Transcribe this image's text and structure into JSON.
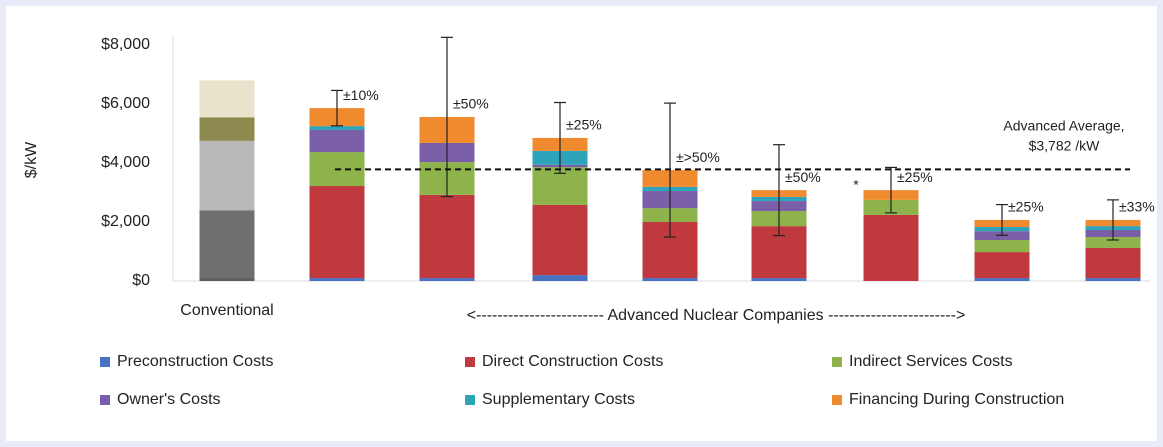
{
  "chart_data": {
    "type": "stacked_bar",
    "ylabel": "$/kW",
    "categories": [
      "Conventional",
      null,
      null,
      null,
      null,
      null,
      null,
      null,
      null
    ],
    "group_label": "<------------------------ Advanced Nuclear Companies ------------------------>",
    "series": [
      {
        "name": "Preconstruction Costs",
        "color": "#4a72c4",
        "values": [
          100,
          100,
          100,
          200,
          100,
          100,
          0,
          100,
          100
        ]
      },
      {
        "name": "Direct Construction Costs",
        "color": "#c0393f",
        "values": [
          2300,
          3120,
          2820,
          2380,
          1900,
          1760,
          2240,
          880,
          1020
        ]
      },
      {
        "name": "Indirect Services Costs",
        "color": "#8db34a",
        "values": [
          2350,
          1150,
          1110,
          1280,
          470,
          510,
          510,
          410,
          370
        ]
      },
      {
        "name": "Owner's Costs",
        "color": "#7b5ea8",
        "values": [
          800,
          750,
          650,
          80,
          580,
          340,
          0,
          300,
          240
        ]
      },
      {
        "name": "Supplementary Costs",
        "color": "#2ea4bb",
        "values": [
          0,
          130,
          0,
          470,
          140,
          140,
          0,
          140,
          130
        ]
      },
      {
        "name": "Financing During Construction",
        "color": "#f08a2e",
        "values": [
          1250,
          610,
          880,
          440,
          570,
          230,
          330,
          240,
          210
        ]
      }
    ],
    "conventional_colors": [
      "#5e5e5e",
      "#6f6f6f",
      "#b9b9b9",
      "#8c8a4e",
      "#cfcfcf",
      "#e8e4cc"
    ],
    "errors": [
      null,
      600,
      2700,
      1200,
      2270,
      1540,
      770,
      520,
      680
    ],
    "error_labels": [
      null,
      "±10%",
      "±50%",
      "±25%",
      "±>50%",
      "±50%",
      "±25%",
      "±25%",
      "±33%"
    ],
    "marker_label": "*",
    "reference_line": {
      "value": 3782,
      "label_lines": [
        "Advanced Average,",
        "$3,782 /kW"
      ]
    },
    "ylim": [
      0,
      8000
    ],
    "yticks": [
      {
        "value": 0,
        "label": "$0"
      },
      {
        "value": 2000,
        "label": "$2,000"
      },
      {
        "value": 4000,
        "label": "$4,000"
      },
      {
        "value": 6000,
        "label": "$6,000"
      },
      {
        "value": 8000,
        "label": "$8,000"
      }
    ],
    "legend": "bottom"
  }
}
